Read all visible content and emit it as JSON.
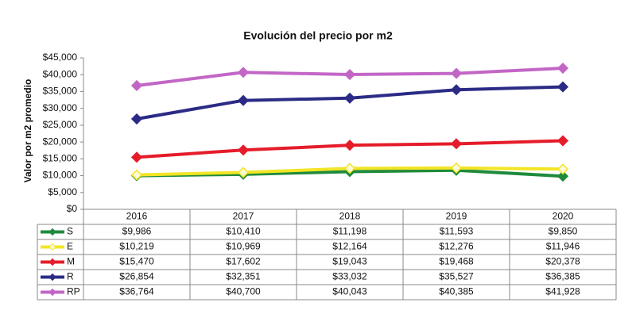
{
  "chart_data": {
    "type": "line",
    "title": "Evolución del precio por m2",
    "y_label": "Valor por m2 promedio",
    "categories": [
      "2016",
      "2017",
      "2018",
      "2019",
      "2020"
    ],
    "ylim": [
      0,
      45000
    ],
    "yticks": [
      {
        "value": 0,
        "label": "$0"
      },
      {
        "value": 5000,
        "label": "$5,000"
      },
      {
        "value": 10000,
        "label": "$10,000"
      },
      {
        "value": 15000,
        "label": "$15,000"
      },
      {
        "value": 20000,
        "label": "$20,000"
      },
      {
        "value": 25000,
        "label": "$25,000"
      },
      {
        "value": 30000,
        "label": "$30,000"
      },
      {
        "value": 35000,
        "label": "$35,000"
      },
      {
        "value": 40000,
        "label": "$40,000"
      },
      {
        "value": 45000,
        "label": "$45,000"
      }
    ],
    "grid": false,
    "series": [
      {
        "name": "S",
        "color": "#1f8a3c",
        "values": [
          9986,
          10410,
          11198,
          11593,
          9850
        ],
        "value_labels": [
          "$9,986",
          "$10,410",
          "$11,198",
          "$11,593",
          "$9,850"
        ]
      },
      {
        "name": "E",
        "color": "#f2e526",
        "marker_fill": "#fffbd6",
        "values": [
          10219,
          10969,
          12164,
          12276,
          11946
        ],
        "value_labels": [
          "$10,219",
          "$10,969",
          "$12,164",
          "$12,276",
          "$11,946"
        ]
      },
      {
        "name": "M",
        "color": "#e51c2a",
        "values": [
          15470,
          17602,
          19043,
          19468,
          20378
        ],
        "value_labels": [
          "$15,470",
          "$17,602",
          "$19,043",
          "$19,468",
          "$20,378"
        ]
      },
      {
        "name": "R",
        "color": "#2b2b86",
        "values": [
          26854,
          32351,
          33032,
          35527,
          36385
        ],
        "value_labels": [
          "$26,854",
          "$32,351",
          "$33,032",
          "$35,527",
          "$36,385"
        ]
      },
      {
        "name": "RP",
        "color": "#c266c6",
        "values": [
          36764,
          40700,
          40043,
          40385,
          41928
        ],
        "value_labels": [
          "$36,764",
          "$40,700",
          "$40,043",
          "$40,385",
          "$41,928"
        ]
      }
    ]
  }
}
